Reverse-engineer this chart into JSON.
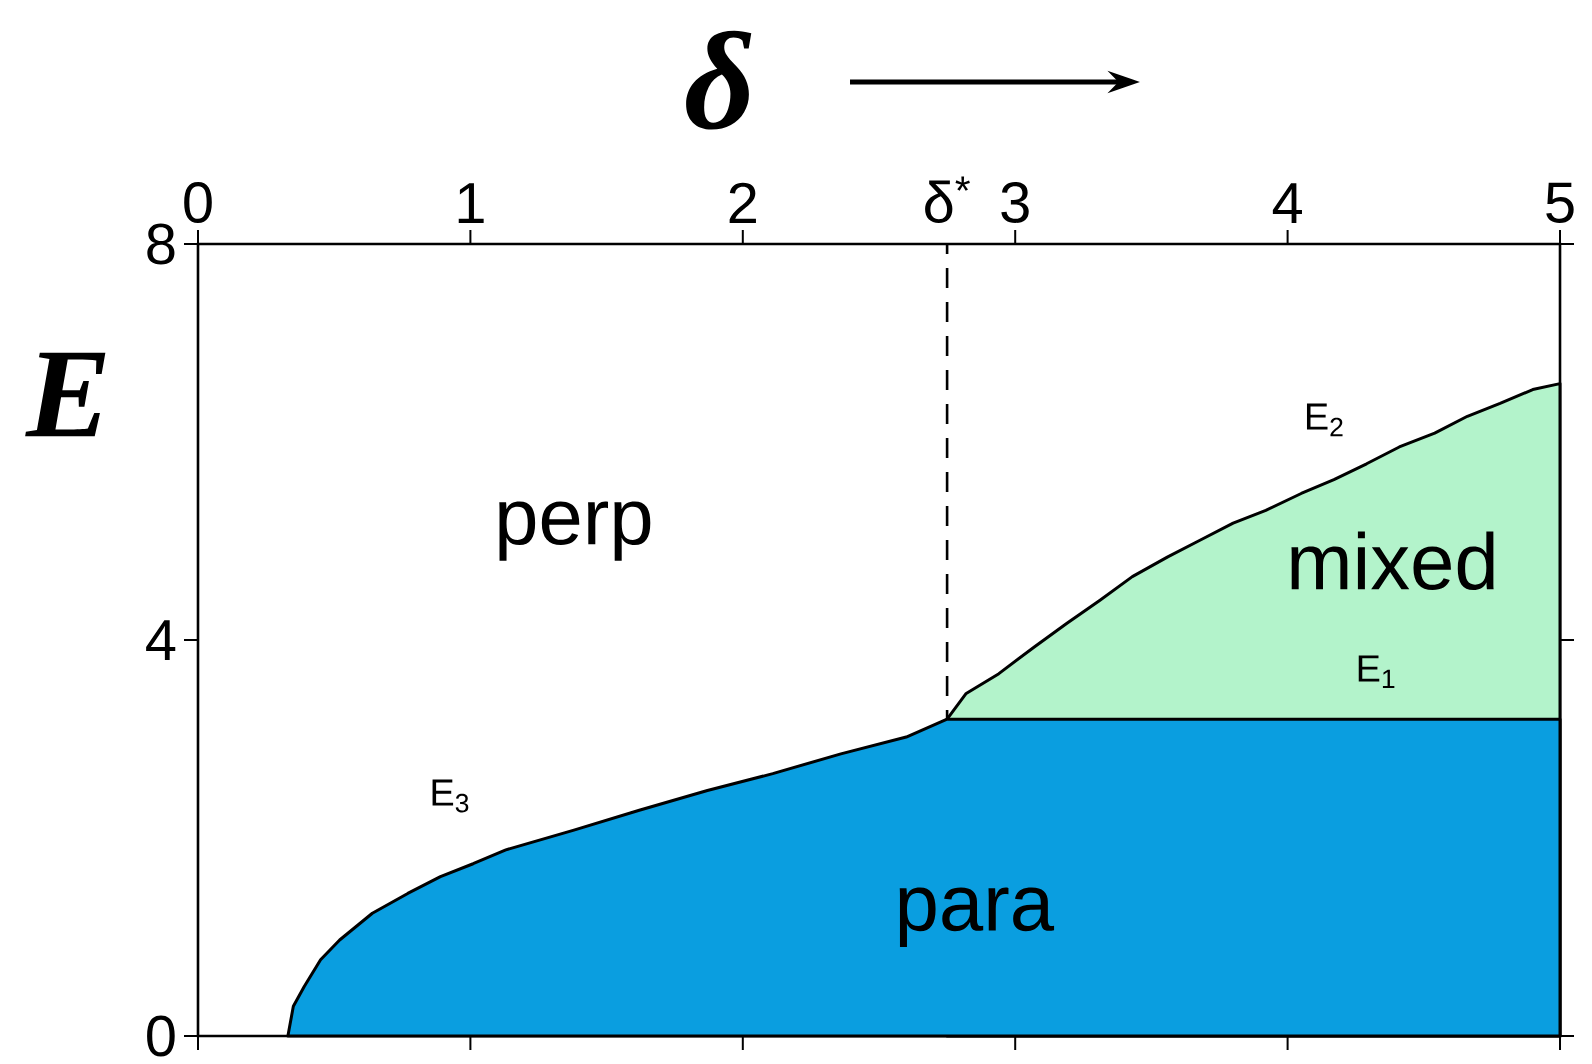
{
  "chart_data": {
    "type": "area",
    "xlabel": "δ",
    "ylabel": "E",
    "xlim": [
      0,
      5
    ],
    "xticks": [
      0,
      1,
      2,
      3,
      4,
      5
    ],
    "ylim": [
      0,
      8
    ],
    "yticks": [
      0,
      4,
      8
    ],
    "series": [
      {
        "name": "mixed",
        "color": "#b3f3cb",
        "x": [
          2.75,
          2.82,
          2.94,
          3.07,
          3.19,
          3.31,
          3.43,
          3.56,
          3.68,
          3.8,
          3.92,
          4.05,
          4.17,
          4.29,
          4.41,
          4.54,
          4.66,
          4.78,
          4.9,
          5
        ],
        "values": [
          3.2,
          3.46,
          3.66,
          3.93,
          4.17,
          4.4,
          4.64,
          4.84,
          5.01,
          5.18,
          5.31,
          5.48,
          5.62,
          5.78,
          5.95,
          6.09,
          6.26,
          6.39,
          6.53,
          6.59
        ]
      },
      {
        "name": "para",
        "color": "#0a9ee0",
        "x": [
          0.33,
          0.35,
          0.39,
          0.45,
          0.52,
          0.64,
          0.77,
          0.89,
          1.01,
          1.13,
          1.38,
          1.62,
          1.87,
          2.11,
          2.36,
          2.6,
          2.75,
          5
        ],
        "values": [
          0,
          0.3,
          0.5,
          0.77,
          0.97,
          1.24,
          1.44,
          1.61,
          1.74,
          1.88,
          2.08,
          2.28,
          2.48,
          2.65,
          2.85,
          3.02,
          3.2,
          3.2
        ]
      }
    ],
    "ref_lines": [
      {
        "axis": "x",
        "value": 2.75,
        "label": "δ$^{*}$",
        "line_style": "dashed"
      }
    ],
    "annotations": [
      "perp",
      "E$_{1}$",
      "E$_{2}$",
      "E$_{3}$"
    ]
  }
}
